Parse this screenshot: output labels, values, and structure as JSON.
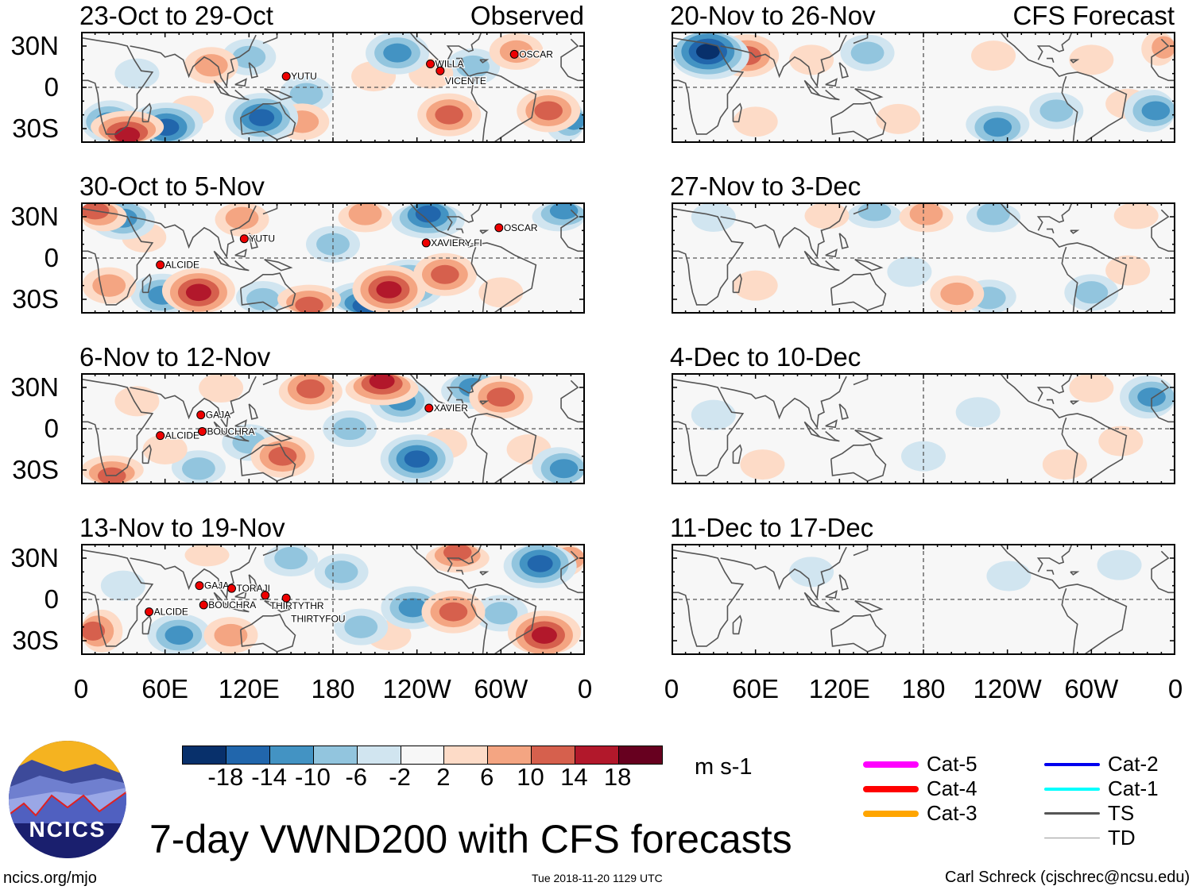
{
  "colors": [
    "#08306b",
    "#2166ac",
    "#4393c3",
    "#92c5de",
    "#d1e5f0",
    "#f7f7f7",
    "#fddbc7",
    "#f4a582",
    "#d6604d",
    "#b2182b",
    "#67001f"
  ],
  "chart_data": {
    "type": "heatmap",
    "title": "7-day VWND200 with CFS forecasts",
    "units": "m s-1",
    "colorbar_ticks": [
      "-18",
      "-14",
      "-10",
      "-6",
      "-2",
      "2",
      "6",
      "10",
      "14",
      "18"
    ],
    "colorbar_levels": [
      -18,
      -14,
      -10,
      -6,
      -2,
      2,
      6,
      10,
      14,
      18
    ],
    "lat_ticks": [
      "30N",
      "0",
      "30S"
    ],
    "lon_ticks": [
      "0",
      "60E",
      "120E",
      "180",
      "120W",
      "60W",
      "0"
    ],
    "lat_range": [
      -40,
      40
    ],
    "lon_range": [
      0,
      360
    ],
    "column_headers": {
      "left": "Observed",
      "right": "CFS Forecast"
    },
    "panels": [
      {
        "title": "23-Oct to 29-Oct",
        "col": 0,
        "row": 0,
        "anomalies": [
          [
            33,
            -35,
            18
          ],
          [
            61,
            -29,
            -14
          ],
          [
            129,
            -22,
            -14
          ],
          [
            93,
            16,
            10
          ],
          [
            226,
            25,
            -10
          ],
          [
            263,
            -20,
            14
          ],
          [
            334,
            -17,
            14
          ],
          [
            209,
            8,
            6
          ],
          [
            354,
            -24,
            -10
          ],
          [
            311,
            26,
            10
          ],
          [
            161,
            -5,
            -6
          ],
          [
            158,
            -25,
            10
          ],
          [
            79,
            -17,
            6
          ],
          [
            20,
            -25,
            -10
          ],
          [
            120,
            22,
            -6
          ],
          [
            280,
            15,
            -6
          ],
          [
            250,
            10,
            6
          ],
          [
            40,
            10,
            -2
          ]
        ],
        "storms": [
          {
            "name": "YUTU",
            "lon": 150,
            "lat": 8
          },
          {
            "name": "WILLA",
            "lon": 253,
            "lat": 17
          },
          {
            "name": "VICENTE",
            "lon": 260,
            "lat": 12
          },
          {
            "name": "OSCAR",
            "lon": 313,
            "lat": 24
          }
        ]
      },
      {
        "title": "30-Oct to 5-Nov",
        "col": 0,
        "row": 1,
        "anomalies": [
          [
            84,
            -25,
            18
          ],
          [
            58,
            -27,
            -10
          ],
          [
            220,
            -23,
            18
          ],
          [
            234,
            -19,
            -14
          ],
          [
            260,
            -12,
            14
          ],
          [
            203,
            -35,
            -14
          ],
          [
            163,
            -35,
            14
          ],
          [
            115,
            29,
            10
          ],
          [
            10,
            35,
            14
          ],
          [
            248,
            32,
            -14
          ],
          [
            345,
            35,
            -10
          ],
          [
            203,
            32,
            10
          ],
          [
            30,
            29,
            -10
          ],
          [
            20,
            -20,
            10
          ],
          [
            130,
            -30,
            -6
          ],
          [
            300,
            -25,
            6
          ],
          [
            180,
            10,
            -6
          ],
          [
            45,
            15,
            6
          ]
        ],
        "storms": [
          {
            "name": "YUTU",
            "lon": 120,
            "lat": 14
          },
          {
            "name": "ALCIDE",
            "lon": 60,
            "lat": -5
          },
          {
            "name": "XAVIERY-FI",
            "lon": 250,
            "lat": 11
          },
          {
            "name": "OSCAR",
            "lon": 302,
            "lat": 22
          }
        ]
      },
      {
        "title": "6-Nov to 12-Nov",
        "col": 0,
        "row": 2,
        "anomalies": [
          [
            164,
            29,
            14
          ],
          [
            215,
            35,
            18
          ],
          [
            229,
            20,
            -10
          ],
          [
            300,
            23,
            14
          ],
          [
            144,
            -20,
            14
          ],
          [
            240,
            -22,
            -14
          ],
          [
            22,
            -35,
            14
          ],
          [
            345,
            -29,
            -10
          ],
          [
            192,
            0,
            -6
          ],
          [
            260,
            -11,
            6
          ],
          [
            84,
            -29,
            -6
          ],
          [
            60,
            -15,
            6
          ],
          [
            120,
            -10,
            -6
          ],
          [
            320,
            -15,
            6
          ],
          [
            280,
            30,
            -10
          ],
          [
            40,
            20,
            6
          ],
          [
            100,
            30,
            6
          ]
        ],
        "storms": [
          {
            "name": "GAJA",
            "lon": 89,
            "lat": 10
          },
          {
            "name": "ALCIDE",
            "lon": 60,
            "lat": -5
          },
          {
            "name": "BOUCHRA",
            "lon": 90,
            "lat": -2
          },
          {
            "name": "XAVIER",
            "lon": 252,
            "lat": 15
          }
        ]
      },
      {
        "title": "13-Nov to 19-Nov",
        "col": 0,
        "row": 3,
        "anomalies": [
          [
            269,
            35,
            14
          ],
          [
            328,
            26,
            -14
          ],
          [
            331,
            -26,
            18
          ],
          [
            266,
            -9,
            14
          ],
          [
            237,
            -6,
            -10
          ],
          [
            70,
            -26,
            -10
          ],
          [
            107,
            -26,
            10
          ],
          [
            7,
            -23,
            14
          ],
          [
            186,
            20,
            -6
          ],
          [
            220,
            -26,
            6
          ],
          [
            90,
            35,
            6
          ],
          [
            300,
            -10,
            -6
          ],
          [
            150,
            30,
            -6
          ],
          [
            30,
            10,
            -2
          ],
          [
            200,
            -20,
            -6
          ],
          [
            350,
            30,
            10
          ]
        ],
        "storms": [
          {
            "name": "GAJA",
            "lon": 88,
            "lat": 10
          },
          {
            "name": "TORAJI",
            "lon": 111,
            "lat": 8
          },
          {
            "name": "THIRTYTHR",
            "lon": 135,
            "lat": 3
          },
          {
            "name": "THIRTYFOU",
            "lon": 150,
            "lat": 1
          },
          {
            "name": "BOUCHRA",
            "lon": 91,
            "lat": -4
          },
          {
            "name": "ALCIDE",
            "lon": 52,
            "lat": -9
          }
        ]
      },
      {
        "title": "20-Nov to 26-Nov",
        "col": 1,
        "row": 0,
        "anomalies": [
          [
            26,
            26,
            -18
          ],
          [
            54,
            23,
            14
          ],
          [
            230,
            23,
            6
          ],
          [
            233,
            -29,
            -10
          ],
          [
            326,
            -12,
            6
          ],
          [
            346,
            -17,
            -10
          ],
          [
            355,
            29,
            10
          ],
          [
            162,
            -23,
            6
          ],
          [
            275,
            -17,
            -6
          ],
          [
            100,
            20,
            6
          ],
          [
            140,
            25,
            -6
          ],
          [
            300,
            20,
            6
          ],
          [
            60,
            -25,
            6
          ]
        ],
        "storms": []
      },
      {
        "title": "27-Nov to 3-Dec",
        "col": 1,
        "row": 1,
        "anomalies": [
          [
            182,
            32,
            10
          ],
          [
            145,
            35,
            -6
          ],
          [
            204,
            -26,
            10
          ],
          [
            227,
            -29,
            -6
          ],
          [
            332,
            32,
            6
          ],
          [
            111,
            32,
            6
          ],
          [
            230,
            32,
            -6
          ],
          [
            326,
            -9,
            6
          ],
          [
            60,
            -20,
            6
          ],
          [
            300,
            -25,
            -6
          ],
          [
            30,
            30,
            -2
          ],
          [
            170,
            -10,
            -2
          ]
        ],
        "storms": []
      },
      {
        "title": "4-Dec to 10-Dec",
        "col": 1,
        "row": 2,
        "anomalies": [
          [
            343,
            23,
            -10
          ],
          [
            321,
            -9,
            6
          ],
          [
            281,
            -26,
            6
          ],
          [
            65,
            -26,
            6
          ],
          [
            219,
            12,
            -2
          ],
          [
            300,
            30,
            6
          ],
          [
            130,
            20,
            2
          ],
          [
            30,
            10,
            -2
          ],
          [
            180,
            -20,
            -2
          ]
        ],
        "storms": []
      },
      {
        "title": "11-Dec to 17-Dec",
        "col": 1,
        "row": 3,
        "anomalies": [
          [
            258,
            -12,
            2
          ],
          [
            241,
            17,
            -2
          ],
          [
            167,
            35,
            2
          ],
          [
            320,
            25,
            -2
          ],
          [
            60,
            -20,
            2
          ],
          [
            100,
            20,
            -2
          ]
        ],
        "storms": []
      }
    ]
  },
  "legend": [
    {
      "label": "Cat-5",
      "color": "#ff00ff"
    },
    {
      "label": "Cat-4",
      "color": "#ff0000"
    },
    {
      "label": "Cat-3",
      "color": "#ffa500"
    },
    {
      "label": "Cat-2",
      "color": "#0000ee"
    },
    {
      "label": "Cat-1",
      "color": "#00ffff"
    },
    {
      "label": "TS",
      "color": "#555555"
    },
    {
      "label": "TD",
      "color": "#999999"
    }
  ],
  "logo": {
    "text": "NCICS"
  },
  "footer": {
    "url": "ncics.org/mjo",
    "timestamp": "Tue 2018-11-20 1129 UTC",
    "credit": "Carl Schreck (cjschrec@ncsu.edu)"
  }
}
